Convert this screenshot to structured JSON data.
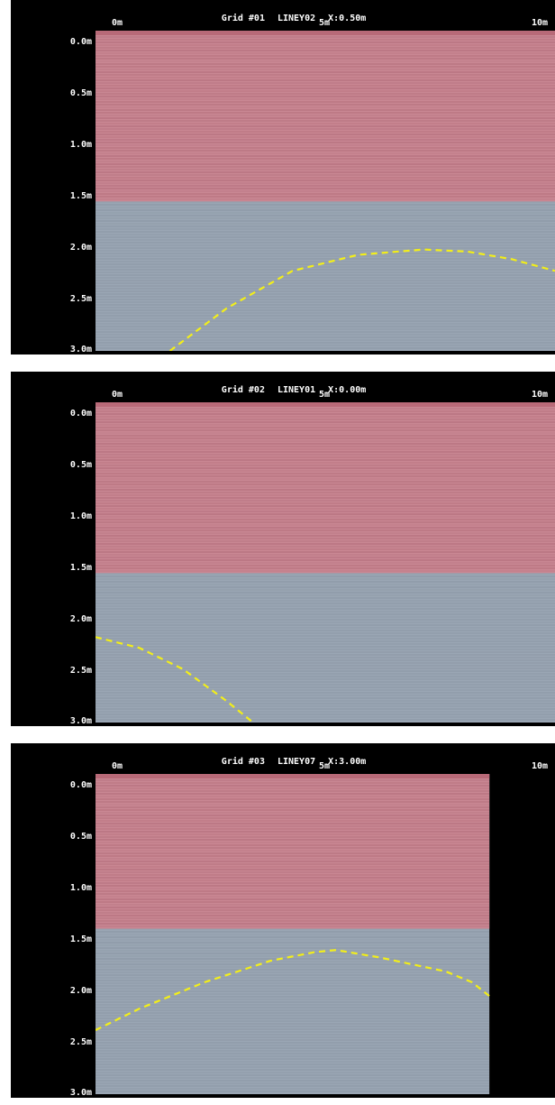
{
  "panels": [
    {
      "title": {
        "grid": "Grid #01",
        "line": "LINEY02",
        "x": "X:0.50m"
      },
      "x_labels": [
        "0m",
        "5m",
        "10m"
      ],
      "y_labels": [
        "0.0m",
        "0.5m",
        "1.0m",
        "1.5m",
        "2.0m",
        "2.5m",
        "3.0m"
      ],
      "upper_zone_depth_m": 1.6,
      "data_extent_m": 10.5,
      "hyperbola": [
        [
          1.7,
          3.0
        ],
        [
          3.0,
          2.6
        ],
        [
          4.5,
          2.25
        ],
        [
          6.0,
          2.1
        ],
        [
          7.5,
          2.05
        ],
        [
          8.5,
          2.07
        ],
        [
          9.5,
          2.14
        ],
        [
          10.5,
          2.25
        ]
      ]
    },
    {
      "title": {
        "grid": "Grid #02",
        "line": "LINEY01",
        "x": "X:0.00m"
      },
      "x_labels": [
        "0m",
        "5m",
        "10m"
      ],
      "y_labels": [
        "0.0m",
        "0.5m",
        "1.0m",
        "1.5m",
        "2.0m",
        "2.5m",
        "3.0m"
      ],
      "upper_zone_depth_m": 1.6,
      "data_extent_m": 10.5,
      "hyperbola": [
        [
          0.0,
          2.2
        ],
        [
          1.0,
          2.3
        ],
        [
          2.0,
          2.5
        ],
        [
          3.0,
          2.8
        ],
        [
          3.6,
          3.0
        ]
      ]
    },
    {
      "title": {
        "grid": "Grid #03",
        "line": "LINEY07",
        "x": "X:3.00m"
      },
      "x_labels": [
        "0m",
        "5m",
        "10m"
      ],
      "y_labels": [
        "0.0m",
        "0.5m",
        "1.0m",
        "1.5m",
        "2.0m",
        "2.5m",
        "3.0m"
      ],
      "upper_zone_depth_m": 1.45,
      "data_extent_m": 9.0,
      "hyperbola": [
        [
          0.0,
          2.4
        ],
        [
          1.0,
          2.2
        ],
        [
          2.5,
          1.95
        ],
        [
          4.0,
          1.75
        ],
        [
          5.0,
          1.67
        ],
        [
          5.5,
          1.65
        ],
        [
          6.5,
          1.72
        ],
        [
          8.0,
          1.85
        ],
        [
          8.6,
          1.95
        ],
        [
          9.0,
          2.08
        ]
      ]
    }
  ],
  "colors": {
    "upper_zone": "#c98793",
    "lower_zone": "#9aa6b4",
    "hyperbola": "#f2ee1a",
    "background": "#000000"
  }
}
